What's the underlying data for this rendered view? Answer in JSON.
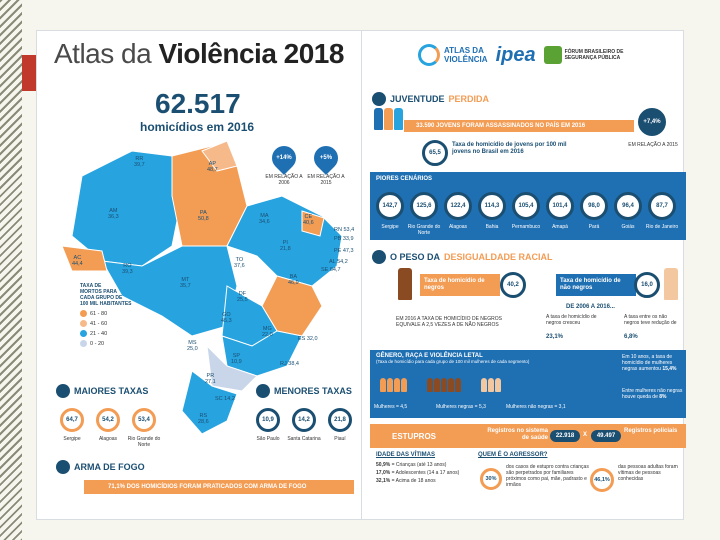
{
  "title": {
    "light": "Atlas da ",
    "bold": "Violência 2018"
  },
  "logos": {
    "atlas_top": "ATLAS DA",
    "atlas_bottom": "VIOLÊNCIA",
    "ipea": "ipea",
    "fbsp_top": "FÓRUM BRASILEIRO DE",
    "fbsp_bottom": "SEGURANÇA PÚBLICA"
  },
  "headline": {
    "number": "62.517",
    "caption": "homicídios em 2016"
  },
  "changes": [
    {
      "value": "+14%",
      "label": "EM RELAÇÃO A 2006"
    },
    {
      "value": "+5%",
      "label": "EM RELAÇÃO A 2015"
    }
  ],
  "states": [
    {
      "code": "RR",
      "rate": "39,7"
    },
    {
      "code": "AP",
      "rate": "48,7"
    },
    {
      "code": "AM",
      "rate": "36,3"
    },
    {
      "code": "PA",
      "rate": "50,8"
    },
    {
      "code": "MA",
      "rate": "34,6"
    },
    {
      "code": "CE",
      "rate": "40,6"
    },
    {
      "code": "RN",
      "rate": "53,4"
    },
    {
      "code": "PB",
      "rate": "33,9"
    },
    {
      "code": "PE",
      "rate": "47,3"
    },
    {
      "code": "AL",
      "rate": "54,2"
    },
    {
      "code": "SE",
      "rate": "64,7"
    },
    {
      "code": "PI",
      "rate": "21,8"
    },
    {
      "code": "AC",
      "rate": "44,4"
    },
    {
      "code": "RO",
      "rate": "39,3"
    },
    {
      "code": "TO",
      "rate": "37,6"
    },
    {
      "code": "BA",
      "rate": "46,9"
    },
    {
      "code": "MT",
      "rate": "35,7"
    },
    {
      "code": "DF",
      "rate": "25,5"
    },
    {
      "code": "GO",
      "rate": "45,3"
    },
    {
      "code": "MG",
      "rate": "22,0"
    },
    {
      "code": "ES",
      "rate": "32,0"
    },
    {
      "code": "MS",
      "rate": "25,0"
    },
    {
      "code": "RJ",
      "rate": "38,4"
    },
    {
      "code": "SP",
      "rate": "10,9"
    },
    {
      "code": "PR",
      "rate": "27,1"
    },
    {
      "code": "SC",
      "rate": "14,2"
    },
    {
      "code": "RS",
      "rate": "28,6"
    }
  ],
  "legend": {
    "title_lines": [
      "TAXA DE",
      "MORTOS PARA",
      "CADA GRUPO DE",
      "100 MIL HABITANTES"
    ],
    "items": [
      {
        "label": "61 - 80",
        "color": "#f39c54"
      },
      {
        "label": "41 - 60",
        "color": "#f6b98a"
      },
      {
        "label": "21 - 40",
        "color": "#27a3df"
      },
      {
        "label": "0 - 20",
        "color": "#c9d6ea"
      }
    ]
  },
  "highest": {
    "title": "MAIORES TAXAS",
    "items": [
      {
        "value": "64,7",
        "label": "Sergipe"
      },
      {
        "value": "54,2",
        "label": "Alagoas"
      },
      {
        "value": "53,4",
        "label": "Rio Grande do Norte"
      }
    ]
  },
  "lowest": {
    "title": "MENORES TAXAS",
    "items": [
      {
        "value": "10,9",
        "label": "São Paulo"
      },
      {
        "value": "14,2",
        "label": "Santa Catarina"
      },
      {
        "value": "21,8",
        "label": "Piauí"
      }
    ]
  },
  "firearm": {
    "title": "ARMA DE FOGO",
    "text": "71,1% DOS HOMICÍDIOS FORAM PRATICADOS COM ARMA DE FOGO"
  },
  "youth": {
    "title_a": "JUVENTUDE ",
    "title_b": "PERDIDA",
    "bar": "33.590 JOVENS FORAM ASSASSINADOS NO PAÍS EM 2016",
    "change": "+7,4%",
    "change_label": "EM RELAÇÃO A 2015",
    "rate": "65,5",
    "rate_text": "Taxa de homicídio de jovens por 100 mil jovens no Brasil em 2016"
  },
  "worst": {
    "title": "PIORES CENÁRIOS",
    "items": [
      {
        "value": "142,7",
        "label": "Sergipe"
      },
      {
        "value": "125,6",
        "label": "Rio Grande do Norte"
      },
      {
        "value": "122,4",
        "label": "Alagoas"
      },
      {
        "value": "114,3",
        "label": "Bahia"
      },
      {
        "value": "105,4",
        "label": "Pernambuco"
      },
      {
        "value": "101,4",
        "label": "Amapá"
      },
      {
        "value": "98,0",
        "label": "Pará"
      },
      {
        "value": "96,4",
        "label": "Goiás"
      },
      {
        "value": "87,7",
        "label": "Rio de Janeiro"
      }
    ]
  },
  "racial": {
    "title_a": "O PESO DA ",
    "title_b": "DESIGUALDADE RACIAL",
    "black_label": "Taxa de homicídio de negros",
    "black_value": "40,2",
    "nonblack_label": "Taxa de homicídio de não negros",
    "nonblack_value": "16,0",
    "period": "DE 2006 A 2016...",
    "note": "EM 2016 A TAXA DE HOMICÍDIO DE NEGROS EQUIVALE A 2,5 VEZES A DE NÃO NEGROS",
    "black_change_text": "A taxa de homicídio de negros cresceu",
    "black_change": "23,1%",
    "nonblack_change_text": "A taxa entre os não negros teve redução de",
    "nonblack_change": "6,8%"
  },
  "gender": {
    "title": "GÊNERO, RAÇA E VIOLÊNCIA LETAL",
    "subtitle": "(Taxa de homicídio para cada grupo de 100 mil mulheres de cada segmento)",
    "women": "Mulheres = 4,5",
    "black_women": "Mulheres negras = 5,3",
    "nonblack_women": "Mulheres não negras = 3,1",
    "note1_a": "Em 10 anos, a taxa de homicídio de mulheres negras aumentou",
    "note1_b": "15,4%",
    "note2_a": "Entre mulheres não negras houve queda de",
    "note2_b": "8%"
  },
  "rape": {
    "title": "ESTUPROS",
    "health_label": "Registros no sistema de saúde",
    "health_value": "22.918",
    "sep": "X",
    "police_value": "49.497",
    "police_label": "Registros policiais",
    "age_title": "IDADE DAS VÍTIMAS",
    "ages": [
      {
        "pct": "50,9%",
        "text": "= Crianças (até 13 anos)"
      },
      {
        "pct": "17,0%",
        "text": "= Adolescentes (14 a 17 anos)"
      },
      {
        "pct": "32,1%",
        "text": "= Acima de 18 anos"
      }
    ],
    "who_title": "QUEM É O AGRESSOR?",
    "who1_pct": "30%",
    "who1_text": "dos casos de estupro contra crianças são perpetrados por familiares próximos como pai, mãe, padrasto e irmãos",
    "who2_pct": "46,1%",
    "who2_text": "das pessoas adultas foram vítimas de pessoas conhecidas"
  }
}
